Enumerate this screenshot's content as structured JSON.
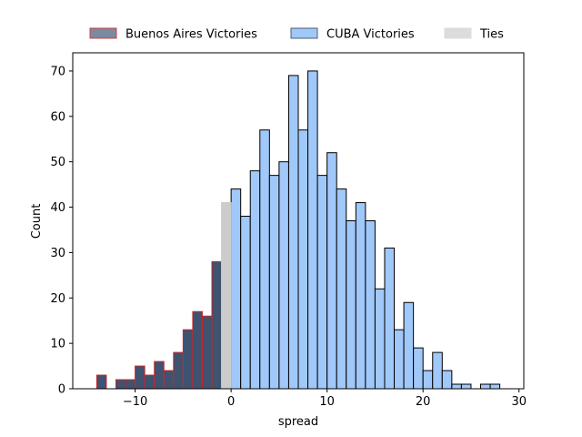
{
  "chart_data": {
    "type": "bar",
    "title": "",
    "xlabel": "spread",
    "ylabel": "Count",
    "xlim": [
      -16.5,
      30.5
    ],
    "ylim": [
      0,
      74
    ],
    "xticks": [
      -10,
      0,
      10,
      20,
      30
    ],
    "yticks": [
      0,
      10,
      20,
      30,
      40,
      50,
      60,
      70
    ],
    "xtick_labels": [
      "−10",
      "0",
      "10",
      "20",
      "30"
    ],
    "ytick_labels": [
      "0",
      "10",
      "20",
      "30",
      "40",
      "50",
      "60",
      "70"
    ],
    "grid": false,
    "legend_position": "top, above plot",
    "series": [
      {
        "name": "Buenos Aires Victories",
        "fill": "#3f5270",
        "edge": "#c62828",
        "bins": [
          {
            "left": -14,
            "right": -13,
            "count": 3
          },
          {
            "left": -13,
            "right": -12,
            "count": 0
          },
          {
            "left": -12,
            "right": -11,
            "count": 2
          },
          {
            "left": -11,
            "right": -10,
            "count": 2
          },
          {
            "left": -10,
            "right": -9,
            "count": 5
          },
          {
            "left": -9,
            "right": -8,
            "count": 3
          },
          {
            "left": -8,
            "right": -7,
            "count": 6
          },
          {
            "left": -7,
            "right": -6,
            "count": 4
          },
          {
            "left": -6,
            "right": -5,
            "count": 8
          },
          {
            "left": -5,
            "right": -4,
            "count": 13
          },
          {
            "left": -4,
            "right": -3,
            "count": 17
          },
          {
            "left": -3,
            "right": -2,
            "count": 16
          },
          {
            "left": -2,
            "right": -1,
            "count": 28
          }
        ]
      },
      {
        "name": "CUBA Victories",
        "fill": "#a0c8f8",
        "edge": "#000000",
        "bins": [
          {
            "left": 0,
            "right": 1,
            "count": 44
          },
          {
            "left": 1,
            "right": 2,
            "count": 38
          },
          {
            "left": 2,
            "right": 3,
            "count": 48
          },
          {
            "left": 3,
            "right": 4,
            "count": 57
          },
          {
            "left": 4,
            "right": 5,
            "count": 47
          },
          {
            "left": 5,
            "right": 6,
            "count": 50
          },
          {
            "left": 6,
            "right": 7,
            "count": 69
          },
          {
            "left": 7,
            "right": 8,
            "count": 57
          },
          {
            "left": 8,
            "right": 9,
            "count": 70
          },
          {
            "left": 9,
            "right": 10,
            "count": 47
          },
          {
            "left": 10,
            "right": 11,
            "count": 52
          },
          {
            "left": 11,
            "right": 12,
            "count": 44
          },
          {
            "left": 12,
            "right": 13,
            "count": 37
          },
          {
            "left": 13,
            "right": 14,
            "count": 41
          },
          {
            "left": 14,
            "right": 15,
            "count": 37
          },
          {
            "left": 15,
            "right": 16,
            "count": 22
          },
          {
            "left": 16,
            "right": 17,
            "count": 31
          },
          {
            "left": 17,
            "right": 18,
            "count": 13
          },
          {
            "left": 18,
            "right": 19,
            "count": 19
          },
          {
            "left": 19,
            "right": 20,
            "count": 9
          },
          {
            "left": 20,
            "right": 21,
            "count": 4
          },
          {
            "left": 21,
            "right": 22,
            "count": 8
          },
          {
            "left": 22,
            "right": 23,
            "count": 4
          },
          {
            "left": 23,
            "right": 24,
            "count": 1
          },
          {
            "left": 24,
            "right": 25,
            "count": 1
          },
          {
            "left": 25,
            "right": 26,
            "count": 0
          },
          {
            "left": 26,
            "right": 27,
            "count": 1
          },
          {
            "left": 27,
            "right": 28,
            "count": 1
          }
        ]
      },
      {
        "name": "Ties",
        "fill": "#cccccc",
        "edge": "#cccccc",
        "bins": [
          {
            "left": -1,
            "right": 0,
            "count": 41
          }
        ]
      }
    ]
  }
}
